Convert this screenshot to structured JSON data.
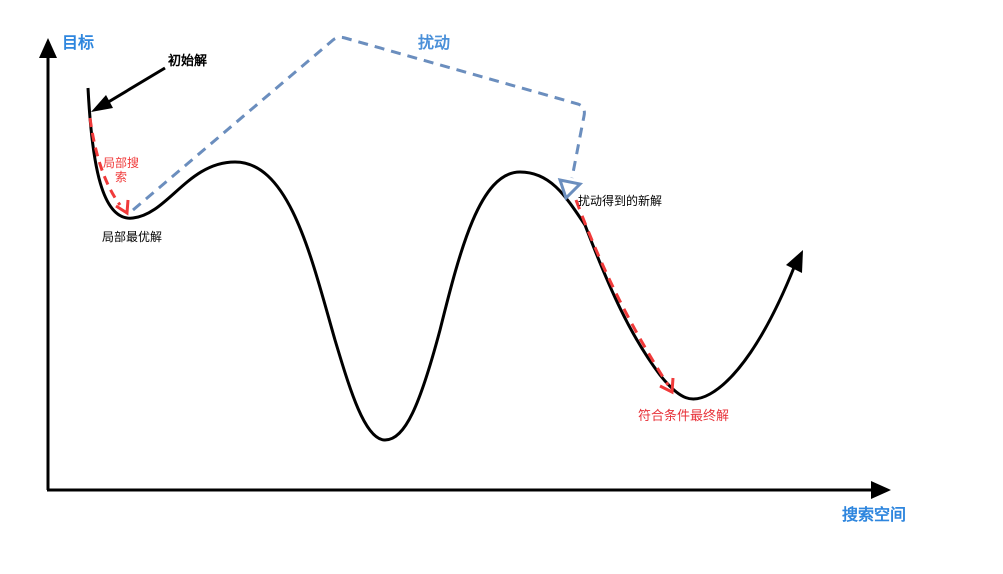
{
  "colors": {
    "axis": "#000000",
    "curve": "#000000",
    "axis_label": "#2e86de",
    "perturb": "#6b8ebe",
    "perturb_label": "#4a90d9",
    "local_search": "#f03a3a",
    "final_label": "#e8333a"
  },
  "axes": {
    "y_label": "目标",
    "x_label": "搜索空间"
  },
  "annotations": {
    "initial_solution": "初始解",
    "local_search_line1": "局部搜",
    "local_search_line2": "索",
    "local_optimum": "局部最优解",
    "perturbation": "扰动",
    "new_solution": "扰动得到的新解",
    "final_solution": "符合条件最终解"
  }
}
